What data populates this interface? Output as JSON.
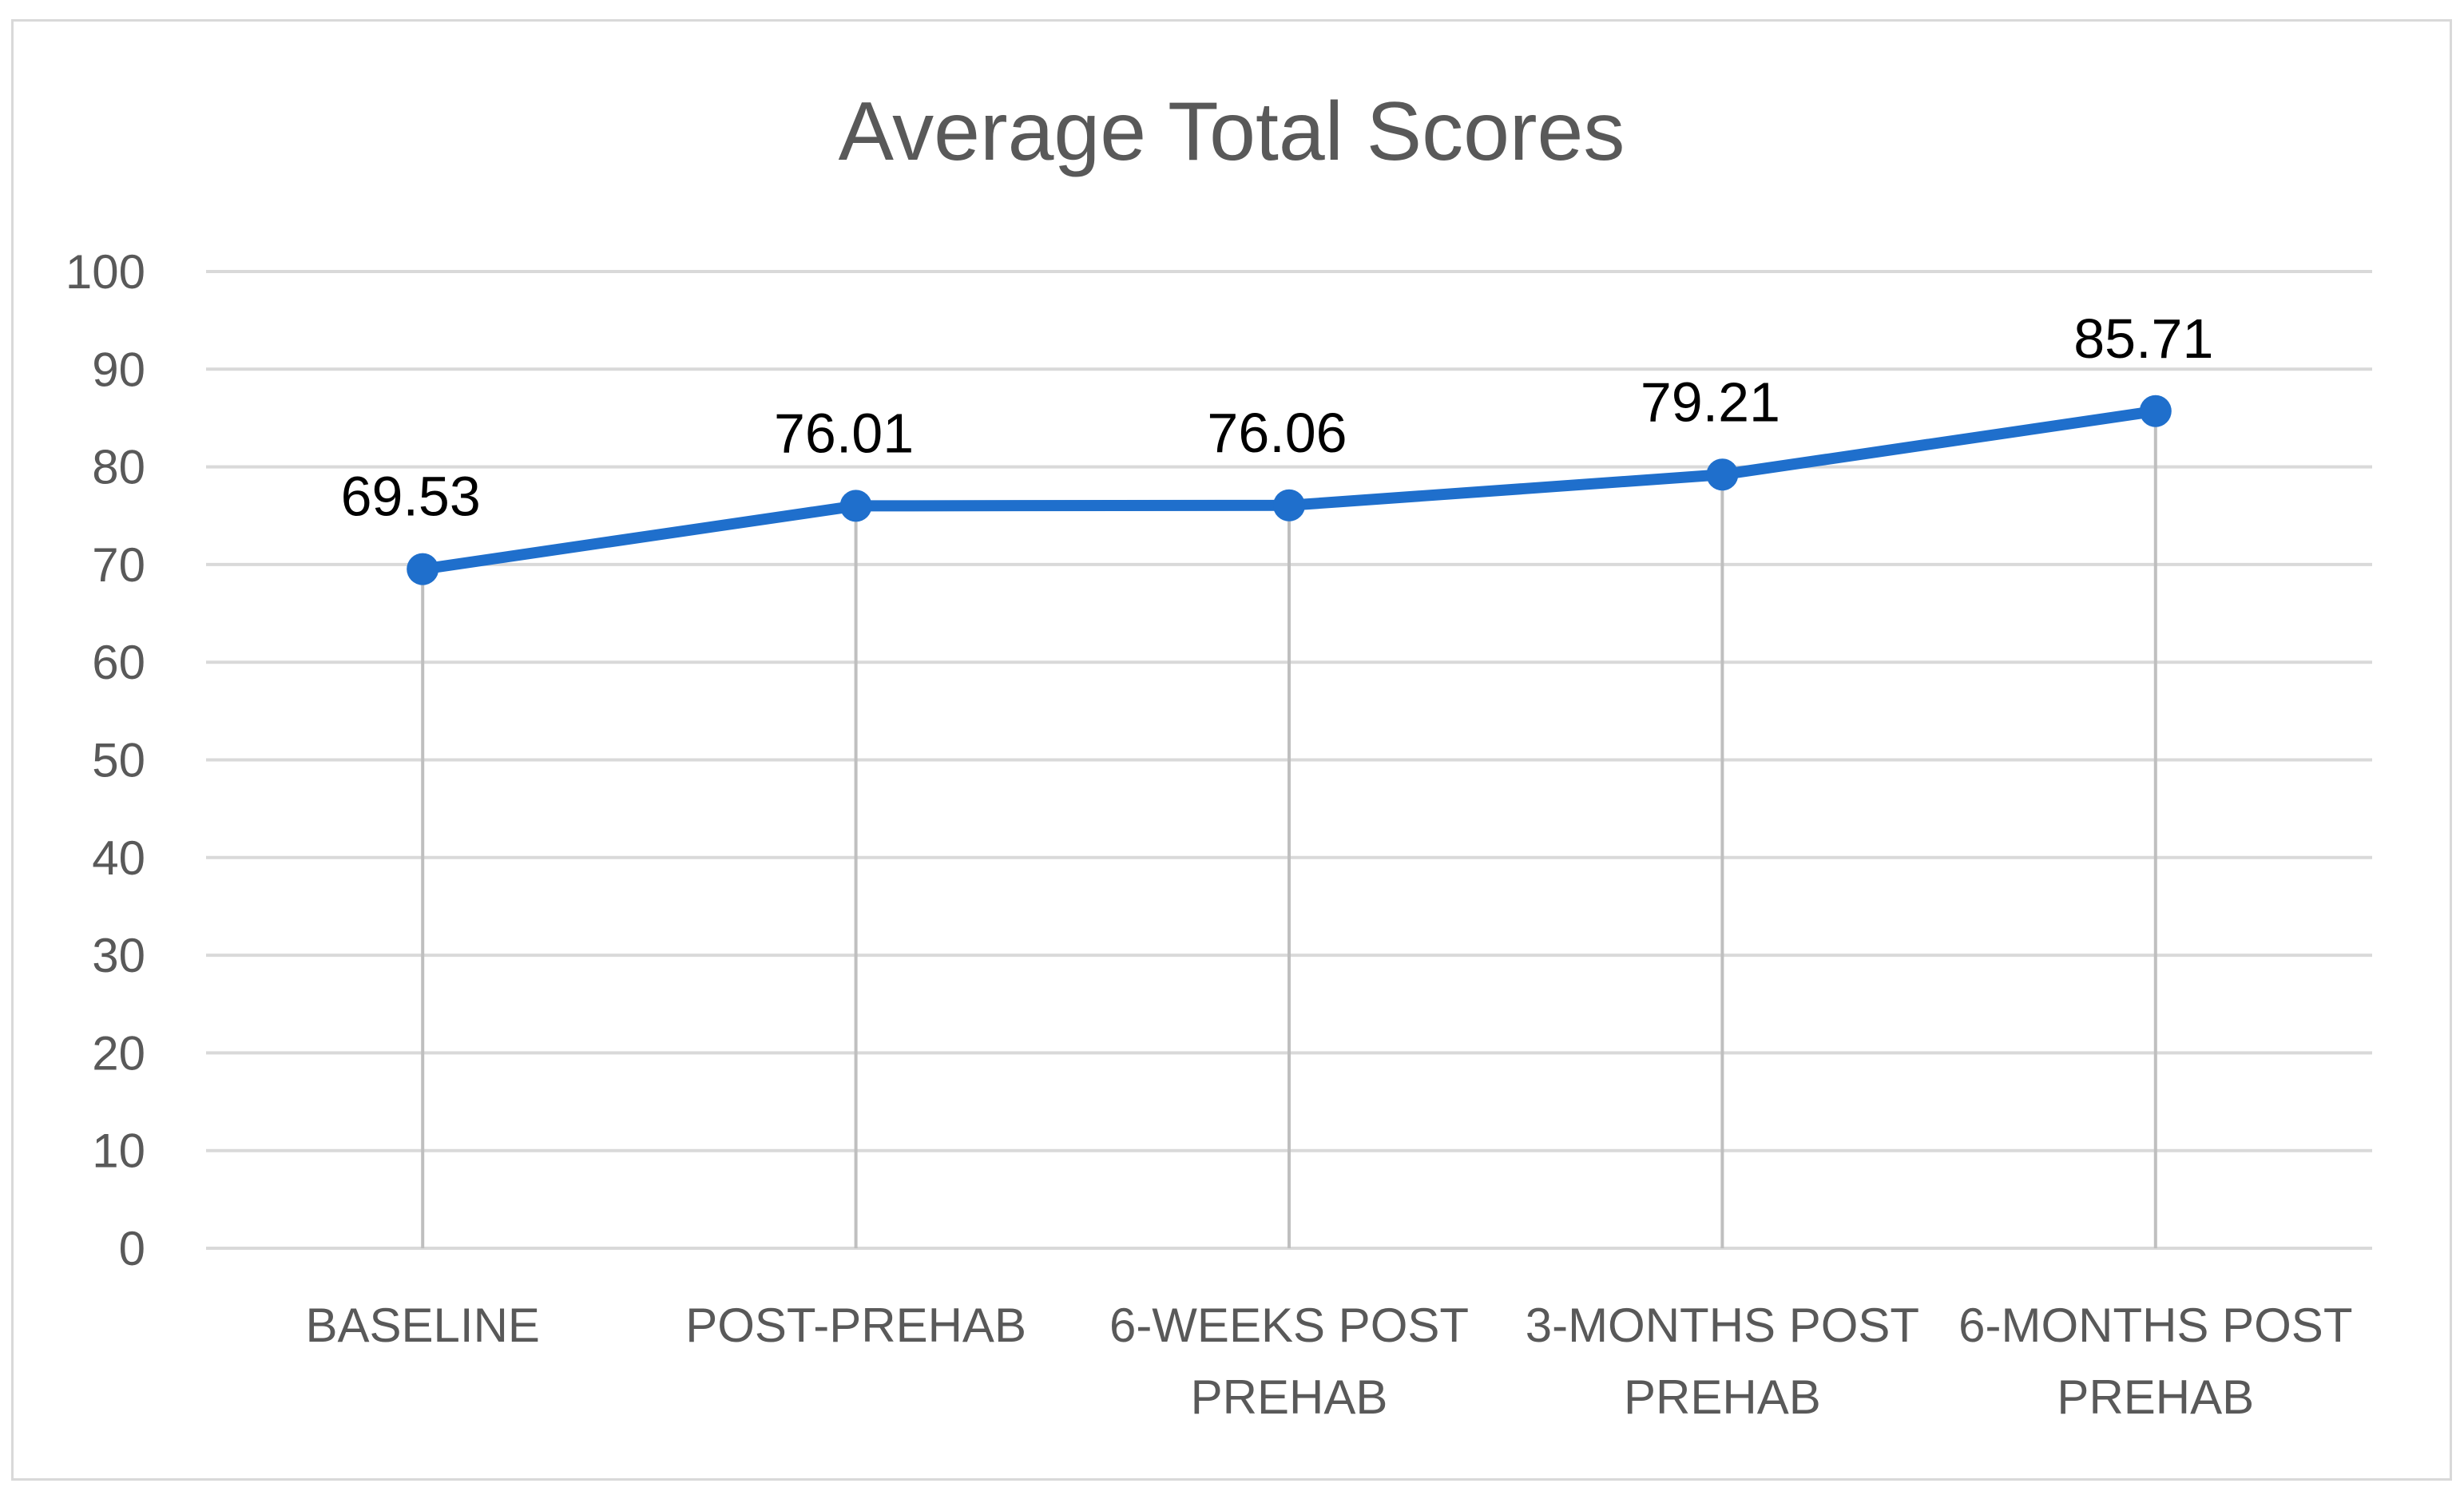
{
  "chart_data": {
    "type": "line",
    "title": "Average Total Scores",
    "xlabel": "",
    "ylabel": "",
    "categories": [
      [
        "BASELINE"
      ],
      [
        "POST-PREHAB"
      ],
      [
        "6-WEEKS POST",
        "PREHAB"
      ],
      [
        "3-MONTHS POST",
        "PREHAB"
      ],
      [
        "6-MONTHS POST",
        "PREHAB"
      ]
    ],
    "series": [
      {
        "values": [
          69.53,
          76.01,
          76.06,
          79.21,
          85.71
        ]
      }
    ],
    "data_labels": [
      "69.53",
      "76.01",
      "76.06",
      "79.21",
      "85.71"
    ],
    "ylim": [
      0,
      100
    ],
    "yticks": [
      0,
      10,
      20,
      30,
      40,
      50,
      60,
      70,
      80,
      90,
      100
    ],
    "grid": true,
    "drop_lines": true,
    "legend": "none",
    "colors": {
      "line": "#1f6fcc",
      "grid": "#d9d9d9",
      "drop_line": "#bfbfbf",
      "tick_text": "#595959"
    }
  }
}
